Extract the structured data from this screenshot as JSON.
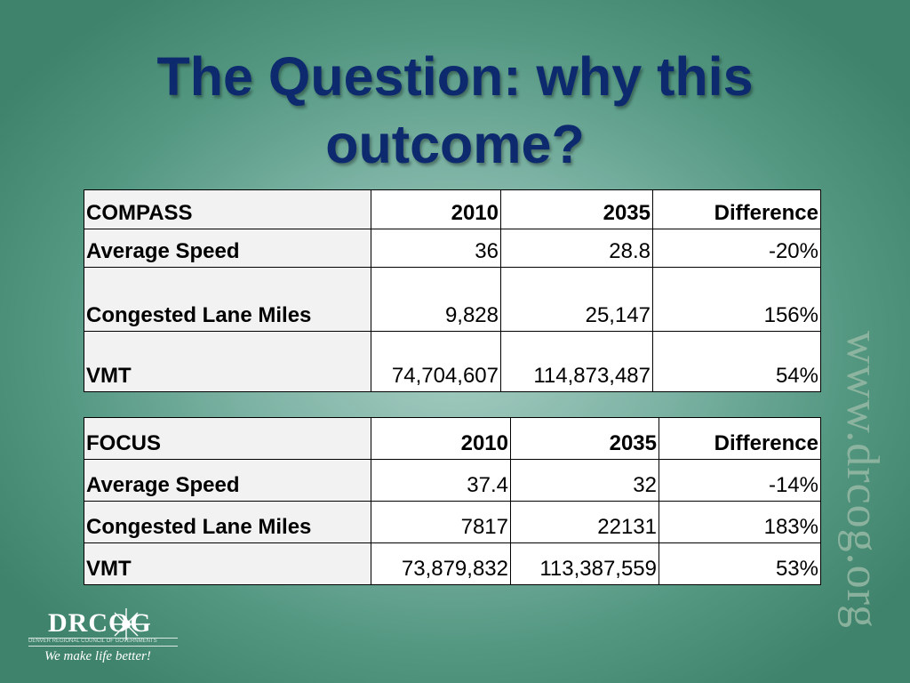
{
  "slide": {
    "title_line1": "The Question: why this",
    "title_line2": "outcome?"
  },
  "compass": {
    "header": [
      "COMPASS",
      "2010",
      "2035",
      "Difference"
    ],
    "rows": [
      [
        "Average Speed",
        "36",
        "28.8",
        "-20%"
      ],
      [
        "Congested Lane Miles",
        "9,828",
        "25,147",
        "156%"
      ],
      [
        "VMT",
        "74,704,607",
        "114,873,487",
        "54%"
      ]
    ]
  },
  "focus": {
    "header": [
      "FOCUS",
      "2010",
      "2035",
      "Difference"
    ],
    "rows": [
      [
        "Average Speed",
        "37.4",
        "32",
        "-14%"
      ],
      [
        "Congested Lane Miles",
        "7817",
        "22131",
        "183%"
      ],
      [
        "VMT",
        "73,879,832",
        "113,387,559",
        "53%"
      ]
    ]
  },
  "watermark": "www.drcog.org",
  "logo": {
    "name": "DRCOG",
    "subtitle": "DENVER REGIONAL COUNCIL OF GOVERNMENTS",
    "tagline": "We make life better!"
  },
  "colors": {
    "title": "#0e2a6e",
    "background_center": "#a9cfc4",
    "background_edge": "#3f836c"
  }
}
